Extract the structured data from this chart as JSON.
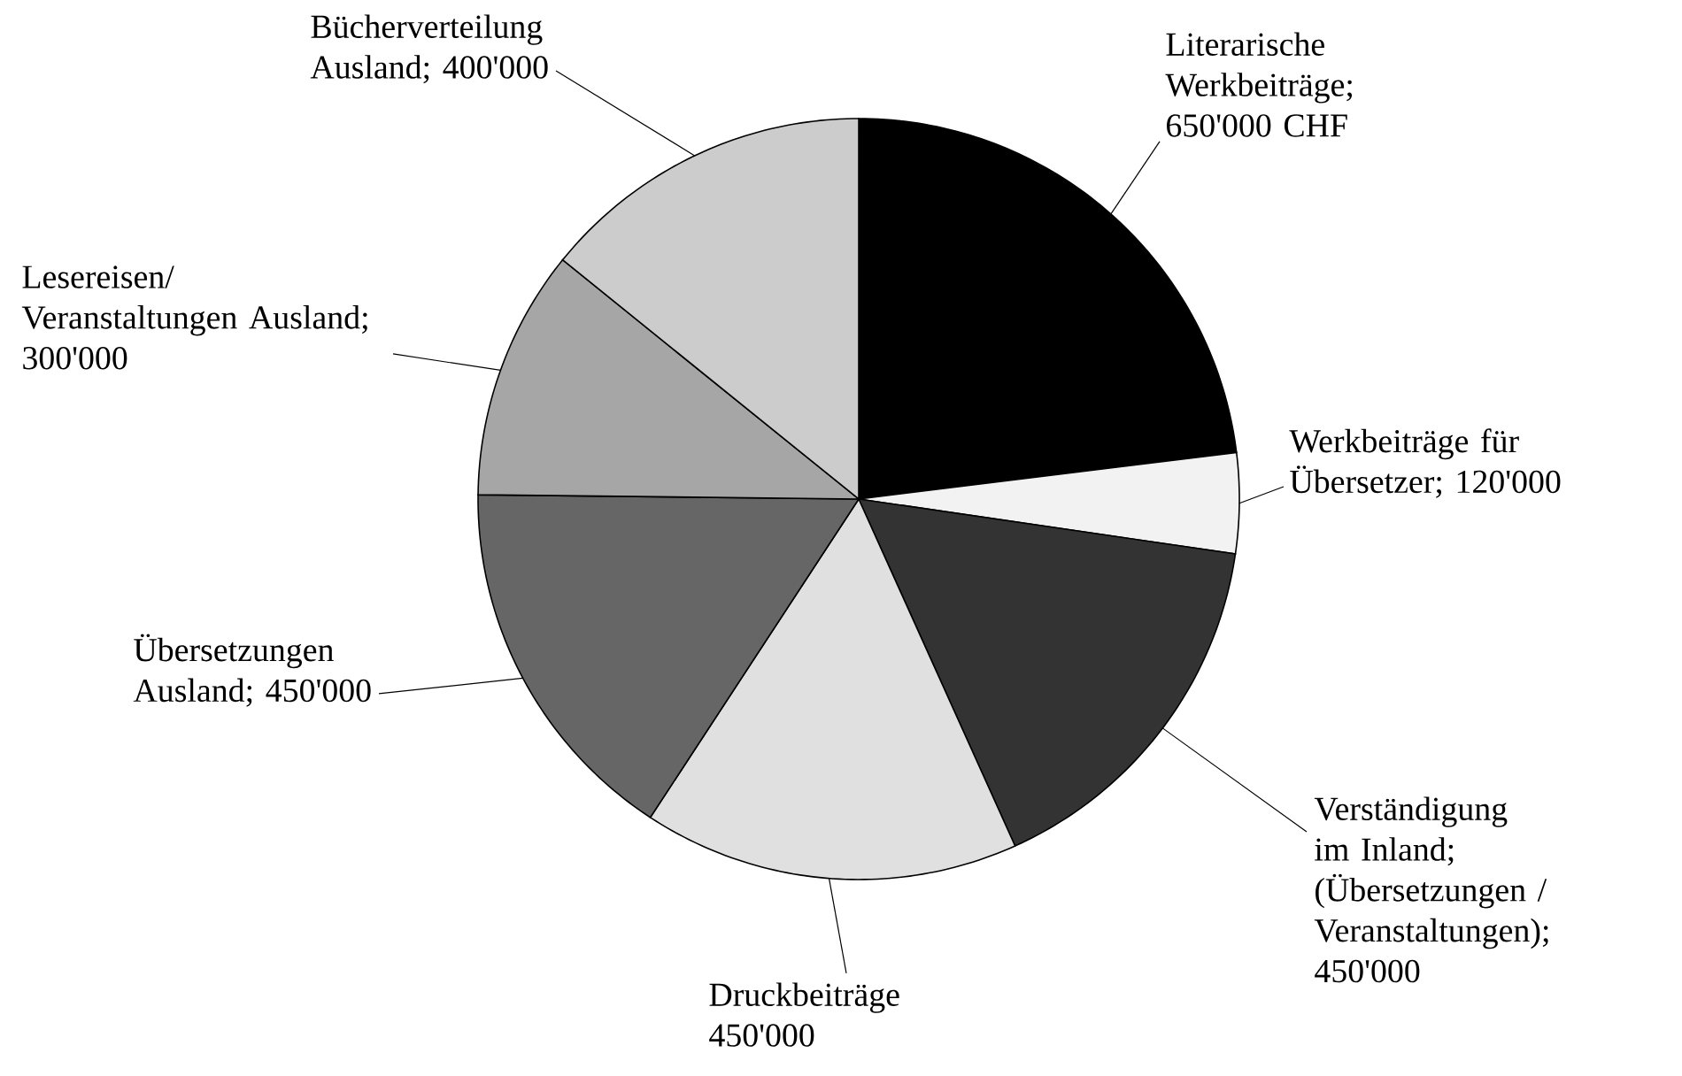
{
  "chart_data": {
    "type": "pie",
    "categories": [
      "Literarische Werkbeiträge; 650'000 CHF",
      "Werkbeiträge für Übersetzer; 120'000",
      "Verständigung im Inland; (Übersetzungen / Veranstaltungen); 450'000",
      "Druckbeiträge 450'000",
      "Übersetzungen Ausland; 450'000",
      "Lesereisen/ Veranstaltungen Ausland; 300'000",
      "Bücherverteilung Ausland; 400'000"
    ],
    "values": [
      650000,
      120000,
      450000,
      450000,
      450000,
      300000,
      400000
    ],
    "colors": [
      "#000000",
      "#f2f2f2",
      "#333333",
      "#e0e0e0",
      "#666666",
      "#a6a6a6",
      "#cccccc"
    ]
  }
}
